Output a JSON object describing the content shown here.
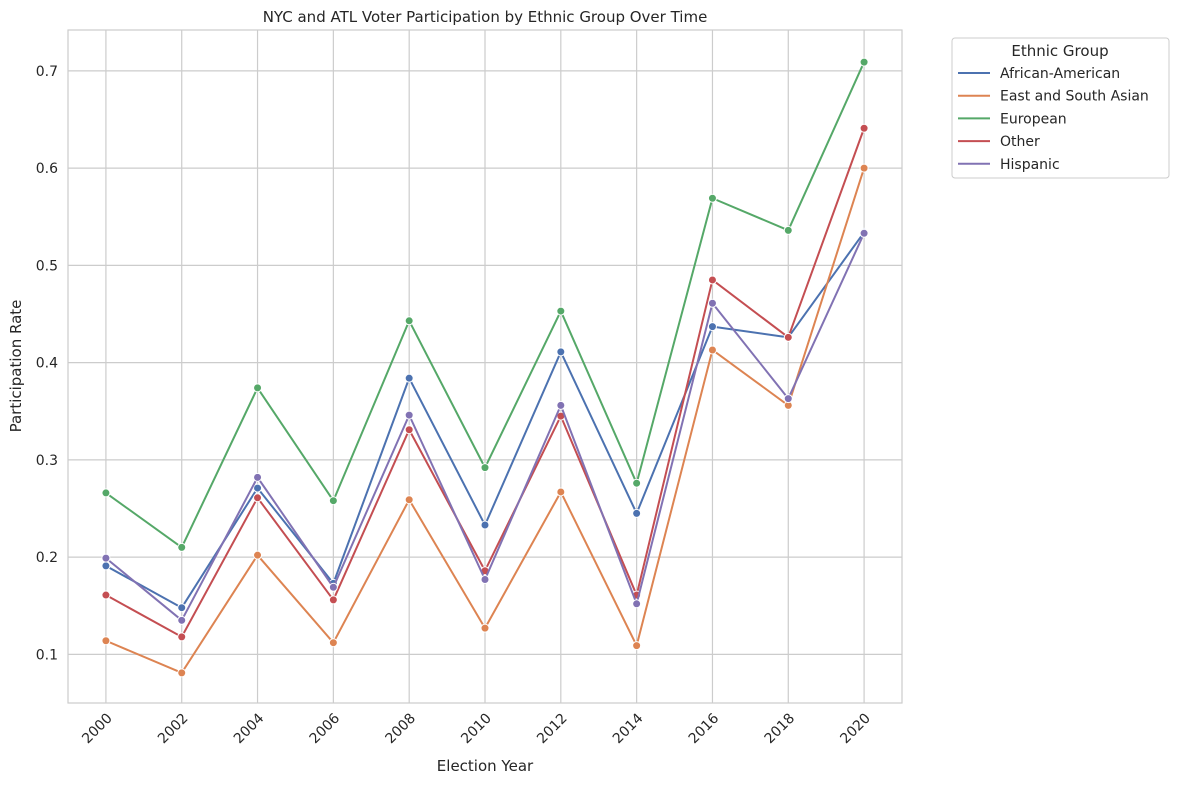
{
  "chart_data": {
    "type": "line",
    "title": "NYC and ATL Voter Participation by Ethnic Group Over Time",
    "xlabel": "Election Year",
    "ylabel": "Participation Rate",
    "x": [
      2000,
      2002,
      2004,
      2006,
      2008,
      2010,
      2012,
      2014,
      2016,
      2018,
      2020
    ],
    "x_tick_labels": [
      "2000",
      "2002",
      "2004",
      "2006",
      "2008",
      "2010",
      "2012",
      "2014",
      "2016",
      "2018",
      "2020"
    ],
    "y_ticks": [
      0.1,
      0.2,
      0.3,
      0.4,
      0.5,
      0.6,
      0.7
    ],
    "y_tick_labels": [
      "0.1",
      "0.2",
      "0.3",
      "0.4",
      "0.5",
      "0.6",
      "0.7"
    ],
    "xlim": [
      1999,
      2021
    ],
    "ylim": [
      0.05,
      0.742
    ],
    "grid": true,
    "legend": {
      "title": "Ethnic Group",
      "placement": "outside upper-right"
    },
    "series": [
      {
        "name": "African-American",
        "color": "#4c72b0",
        "values": [
          0.191,
          0.148,
          0.271,
          0.173,
          0.384,
          0.233,
          0.411,
          0.245,
          0.437,
          0.426,
          0.534
        ]
      },
      {
        "name": "East and South Asian",
        "color": "#dd8452",
        "values": [
          0.114,
          0.081,
          0.202,
          0.112,
          0.259,
          0.127,
          0.267,
          0.109,
          0.413,
          0.356,
          0.6
        ]
      },
      {
        "name": "European",
        "color": "#55a868",
        "values": [
          0.266,
          0.21,
          0.374,
          0.258,
          0.443,
          0.292,
          0.453,
          0.276,
          0.569,
          0.536,
          0.709
        ]
      },
      {
        "name": "Other",
        "color": "#c44e52",
        "values": [
          0.161,
          0.118,
          0.261,
          0.156,
          0.331,
          0.186,
          0.345,
          0.161,
          0.485,
          0.426,
          0.641
        ]
      },
      {
        "name": "Hispanic",
        "color": "#8172b3",
        "values": [
          0.199,
          0.135,
          0.282,
          0.169,
          0.346,
          0.177,
          0.356,
          0.152,
          0.461,
          0.363,
          0.533
        ]
      }
    ]
  }
}
